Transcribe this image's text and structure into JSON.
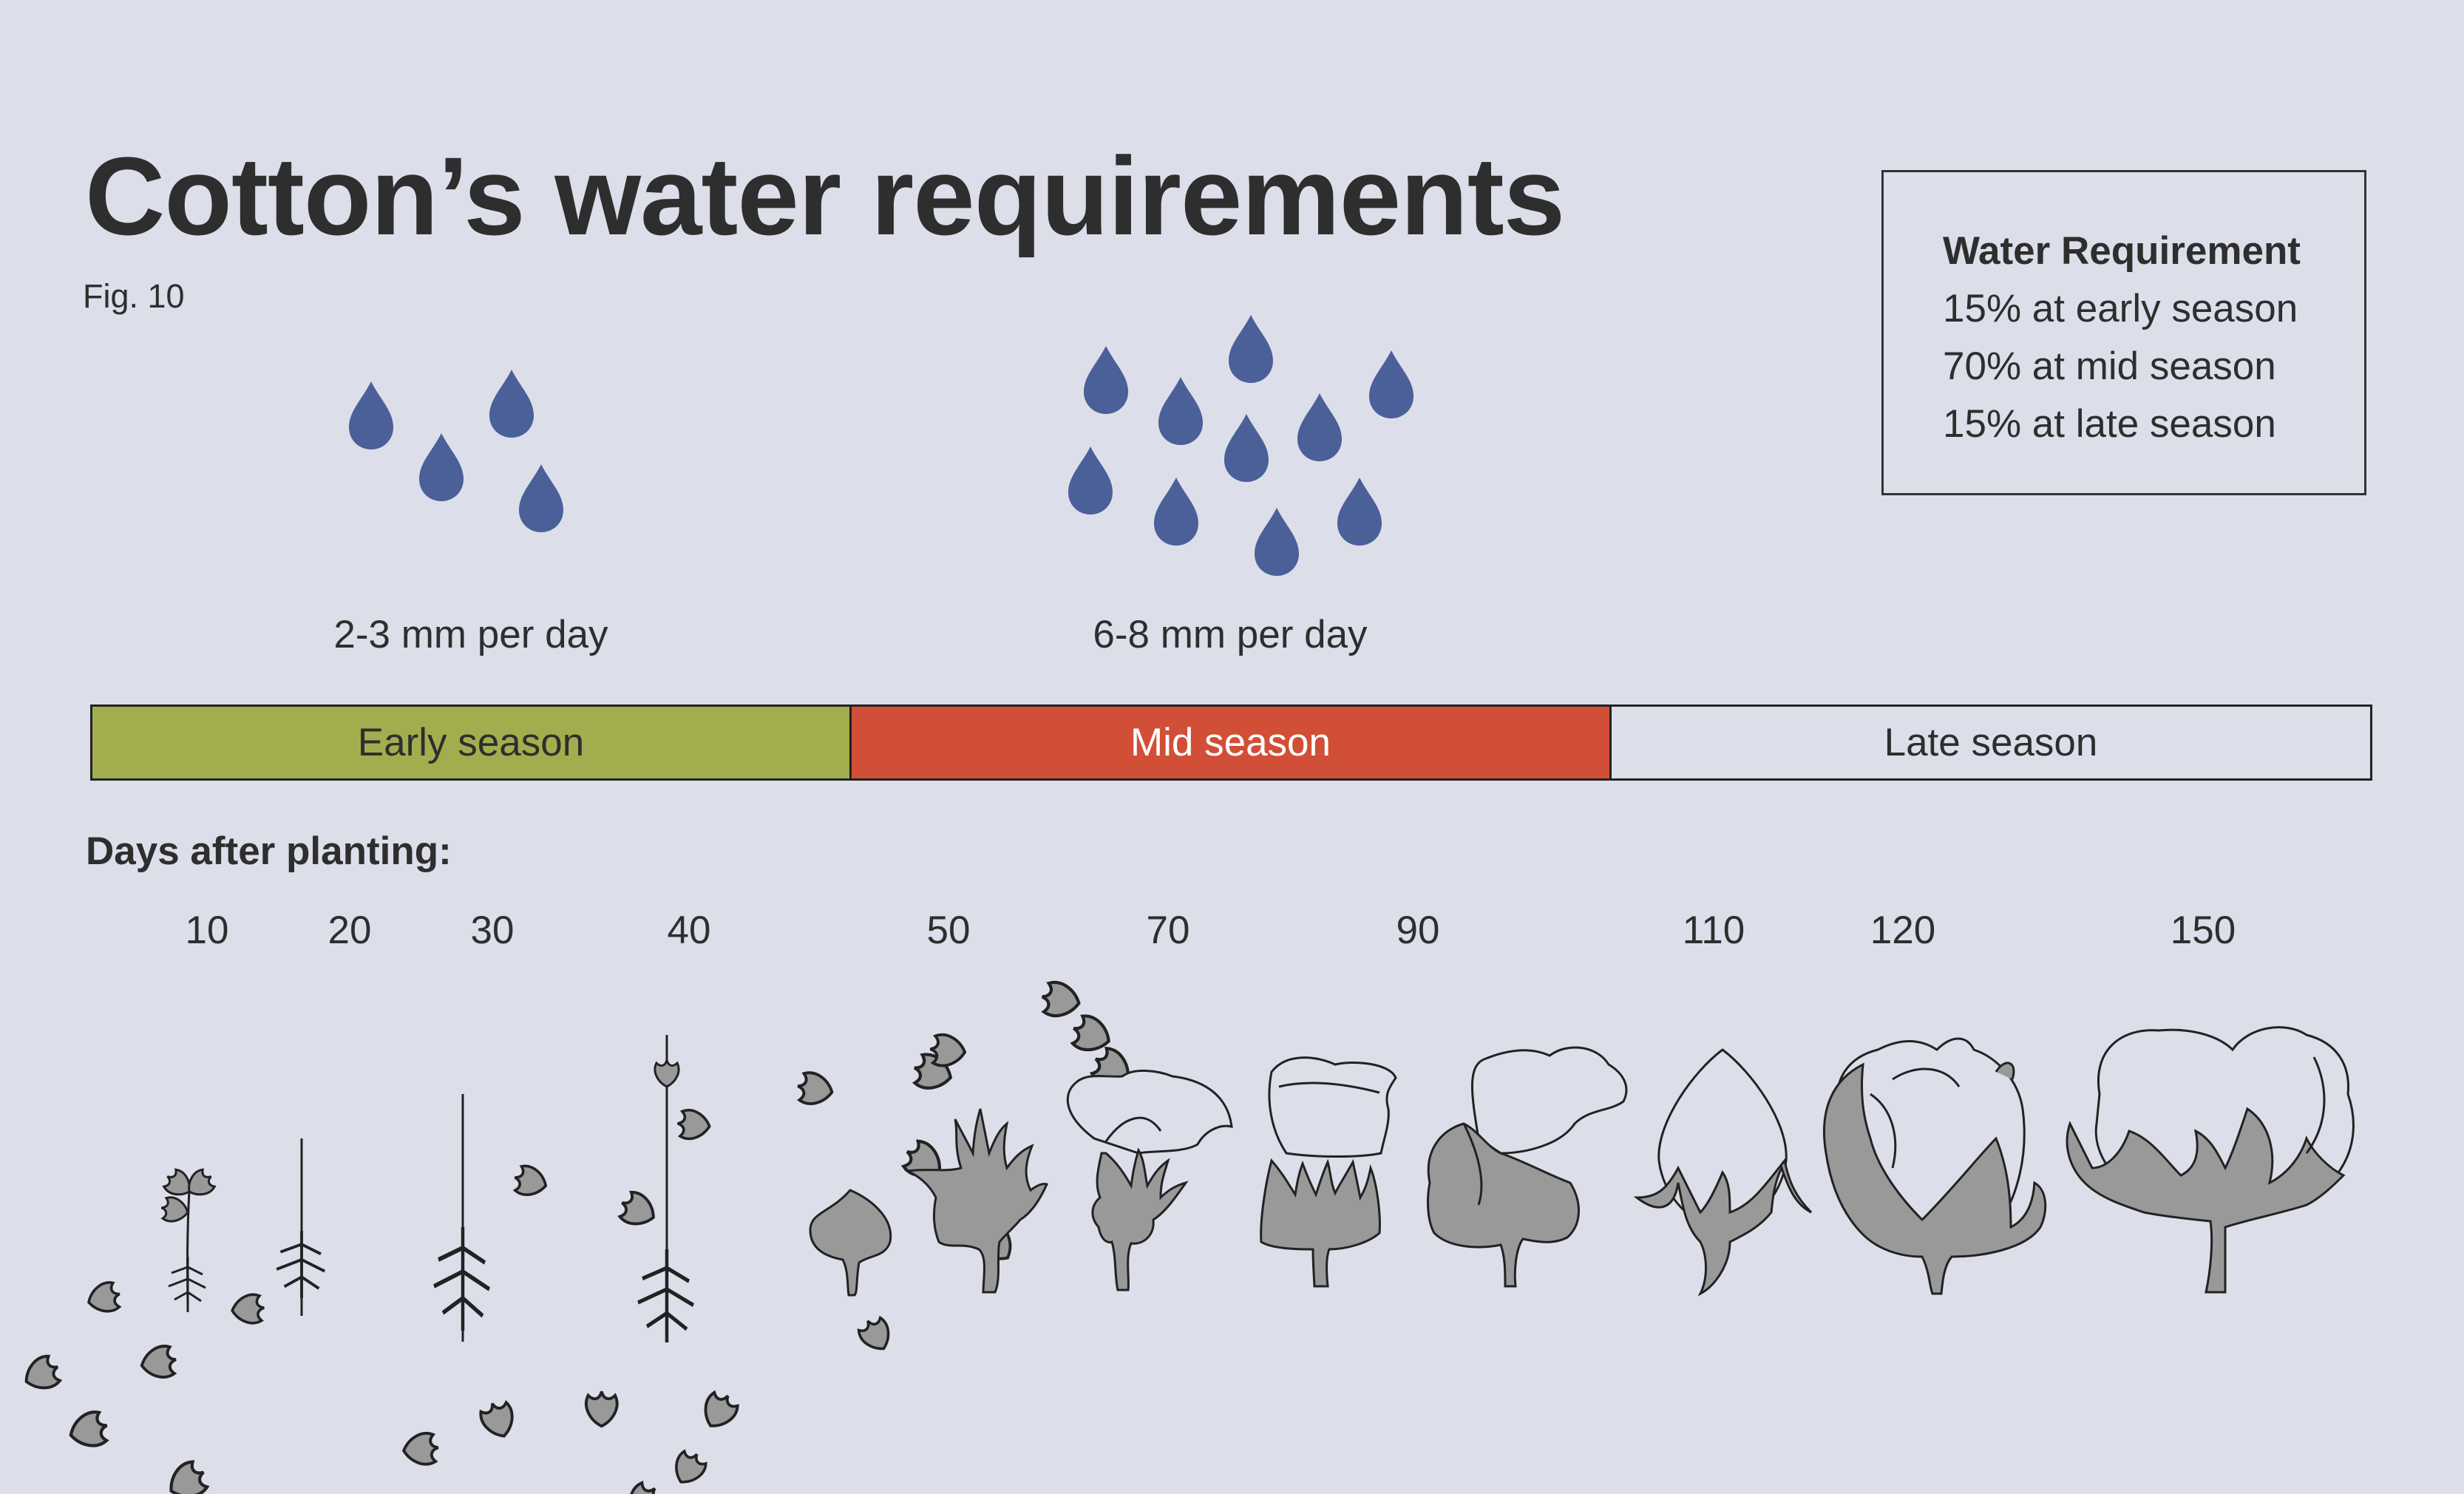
{
  "title": "Cotton’s water requirements",
  "fig_label": "Fig. 10",
  "legend": {
    "heading": "Water Requirement",
    "lines": [
      "15% at early season",
      "70% at mid season",
      "15% at late season"
    ]
  },
  "rates": {
    "early": "2-3 mm per day",
    "mid": "6-8 mm per day"
  },
  "seasons": {
    "early": "Early season",
    "mid": "Mid season",
    "late": "Late season"
  },
  "colors": {
    "background": "#dcdfea",
    "early": "#a2ae4e",
    "mid": "#d14f37",
    "drop": "#4b5f98",
    "plant": "#999999"
  },
  "days_label": "Days after planting:",
  "days": [
    "10",
    "20",
    "30",
    "40",
    "50",
    "70",
    "90",
    "110",
    "120",
    "150"
  ],
  "stages": [
    "seedling",
    "young-plant",
    "growing-plant",
    "leafy-plant",
    "square",
    "flower",
    "flower",
    "open-flower",
    "boll",
    "boll",
    "open-boll"
  ]
}
